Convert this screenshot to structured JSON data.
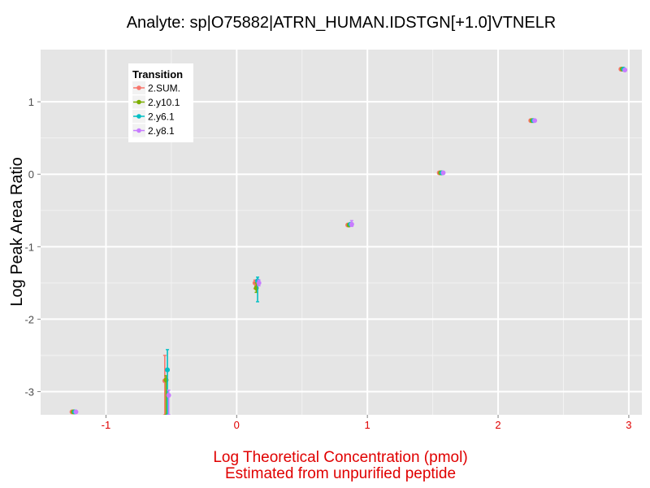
{
  "colors": {
    "panel": "#e5e5e5",
    "grid_major": "#ffffff",
    "grid_minor": "#f2f2f2",
    "x_text": "#e00000",
    "y_text": "#4d4d4d"
  },
  "chart_data": {
    "type": "scatter",
    "title": "Analyte: sp|O75882|ATRN_HUMAN.IDSTGN[+1.0]VTNELR",
    "xlabel_line1": "Log Theoretical Concentration (pmol)",
    "xlabel_line2": "Estimated from unpurified peptide",
    "ylabel": "Log Peak Area Ratio",
    "xlim": [
      -1.5,
      3.1
    ],
    "ylim": [
      -3.32,
      1.72
    ],
    "x_ticks": [
      -1,
      0,
      1,
      2,
      3
    ],
    "x_tick_labels": [
      "-1",
      "0",
      "1",
      "2",
      "3"
    ],
    "y_ticks": [
      -3,
      -2,
      -1,
      0,
      1
    ],
    "y_tick_labels": [
      "-3",
      "-2",
      "-1",
      "0",
      "1"
    ],
    "legend": {
      "title": "Transition",
      "position": "top-left"
    },
    "series": [
      {
        "name": "2.SUM.",
        "color": "#f8766d",
        "points": [
          {
            "x": -1.26,
            "y": -3.28
          },
          {
            "x": -0.55,
            "y": -2.85,
            "ylo": -3.32,
            "yhi": -2.5
          },
          {
            "x": 0.14,
            "y": -1.5,
            "ylo": -1.58,
            "yhi": -1.46
          },
          {
            "x": 0.85,
            "y": -0.7
          },
          {
            "x": 1.55,
            "y": 0.02
          },
          {
            "x": 2.25,
            "y": 0.74
          },
          {
            "x": 2.94,
            "y": 1.45
          }
        ]
      },
      {
        "name": "2.y10.1",
        "color": "#7cae00",
        "points": [
          {
            "x": -1.25,
            "y": -3.28
          },
          {
            "x": -0.54,
            "y": -2.84,
            "ylo": -3.32,
            "yhi": -2.78
          },
          {
            "x": 0.15,
            "y": -1.57,
            "ylo": -1.63,
            "yhi": -1.5
          },
          {
            "x": 0.86,
            "y": -0.7
          },
          {
            "x": 1.56,
            "y": 0.02
          },
          {
            "x": 2.26,
            "y": 0.74
          },
          {
            "x": 2.95,
            "y": 1.45
          }
        ]
      },
      {
        "name": "2.y6.1",
        "color": "#00bfc4",
        "points": [
          {
            "x": -1.24,
            "y": -3.28
          },
          {
            "x": -0.53,
            "y": -2.7,
            "ylo": -3.32,
            "yhi": -2.42
          },
          {
            "x": 0.16,
            "y": -1.47,
            "ylo": -1.76,
            "yhi": -1.42
          },
          {
            "x": 0.87,
            "y": -0.69
          },
          {
            "x": 1.57,
            "y": 0.02
          },
          {
            "x": 2.27,
            "y": 0.74
          },
          {
            "x": 2.96,
            "y": 1.45
          }
        ]
      },
      {
        "name": "2.y8.1",
        "color": "#c77cff",
        "points": [
          {
            "x": -1.23,
            "y": -3.28
          },
          {
            "x": -0.52,
            "y": -3.05,
            "ylo": -3.32,
            "yhi": -2.98
          },
          {
            "x": 0.17,
            "y": -1.5,
            "ylo": -1.54,
            "yhi": -1.46
          },
          {
            "x": 0.88,
            "y": -0.69,
            "ylo": -0.72,
            "yhi": -0.64
          },
          {
            "x": 1.58,
            "y": 0.02
          },
          {
            "x": 2.28,
            "y": 0.74
          },
          {
            "x": 2.97,
            "y": 1.44
          }
        ]
      }
    ]
  }
}
